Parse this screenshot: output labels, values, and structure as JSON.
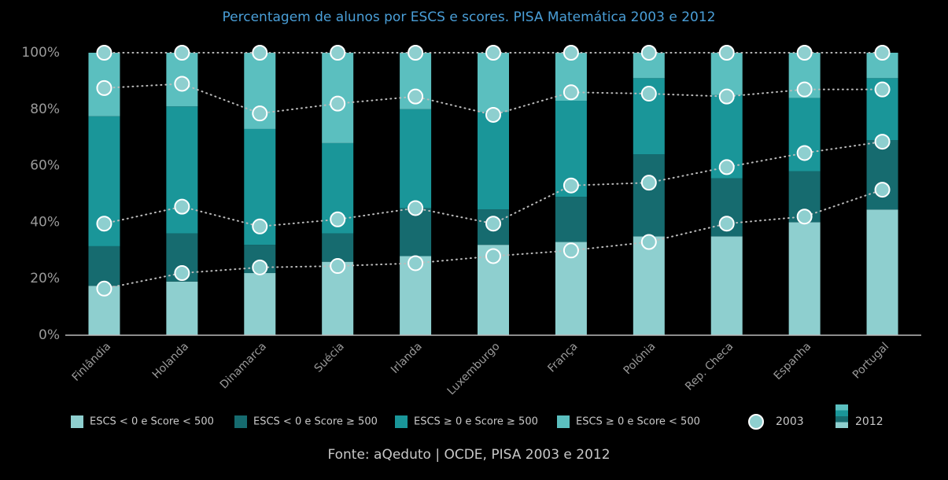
{
  "chart_data": {
    "type": "stacked_bar",
    "title": "Percentagem de alunos por ESCS e scores. PISA Matemática 2003 e 2012",
    "source": "Fonte: aQeduto | OCDE, PISA 2003 e 2012",
    "categories": [
      "Finlândia",
      "Holanda",
      "Dinamarca",
      "Suécia",
      "Irlanda",
      "Luxemburgo",
      "França",
      "Polónia",
      "Rep. Checa",
      "Espanha",
      "Portugal"
    ],
    "bars_name": "2012",
    "series": [
      {
        "name": "ESCS < 0 e Score < 500",
        "color": "#8ecfcf",
        "values": [
          17.5,
          19,
          22,
          26,
          28,
          32,
          33,
          35,
          35,
          40,
          44.5
        ]
      },
      {
        "name": "ESCS < 0 e Score ≥ 500",
        "color": "#166b6f",
        "values": [
          14,
          17,
          10,
          10,
          17,
          12.5,
          16,
          29,
          20.5,
          18,
          24.5
        ]
      },
      {
        "name": "ESCS ≥ 0 e Score ≥ 500",
        "color": "#1a9699",
        "values": [
          46,
          45,
          41,
          32,
          35,
          34.5,
          34,
          27,
          29.5,
          26,
          22
        ]
      },
      {
        "name": "ESCS ≥ 0 e Score < 500",
        "color": "#5bbfbf",
        "values": [
          22.5,
          19,
          27,
          32,
          20,
          21,
          17,
          9,
          15,
          16,
          9
        ]
      }
    ],
    "markers": {
      "name": "2003",
      "color": "#8ecfcf",
      "series": [
        {
          "values": [
            16.5,
            22,
            24,
            24.5,
            25.5,
            28,
            30,
            33,
            39.5,
            42,
            51.5
          ]
        },
        {
          "values": [
            23,
            23.5,
            14.5,
            16.5,
            19.5,
            11.5,
            23,
            21,
            20,
            22.5,
            17
          ]
        },
        {
          "values": [
            48,
            43.5,
            40,
            41,
            39.5,
            38.5,
            33,
            31.5,
            25,
            22.5,
            18.5
          ]
        },
        {
          "values": [
            12.5,
            11,
            21.5,
            18,
            15.5,
            22,
            14,
            14.5,
            15.5,
            13,
            13
          ]
        }
      ]
    },
    "ylim": [
      0,
      100
    ],
    "yticks": [
      {
        "value": 0,
        "label": "0%"
      },
      {
        "value": 20,
        "label": "20%"
      },
      {
        "value": 40,
        "label": "40%"
      },
      {
        "value": 60,
        "label": "60%"
      },
      {
        "value": 80,
        "label": "80%"
      },
      {
        "value": 100,
        "label": "100%"
      }
    ],
    "grid": false
  }
}
